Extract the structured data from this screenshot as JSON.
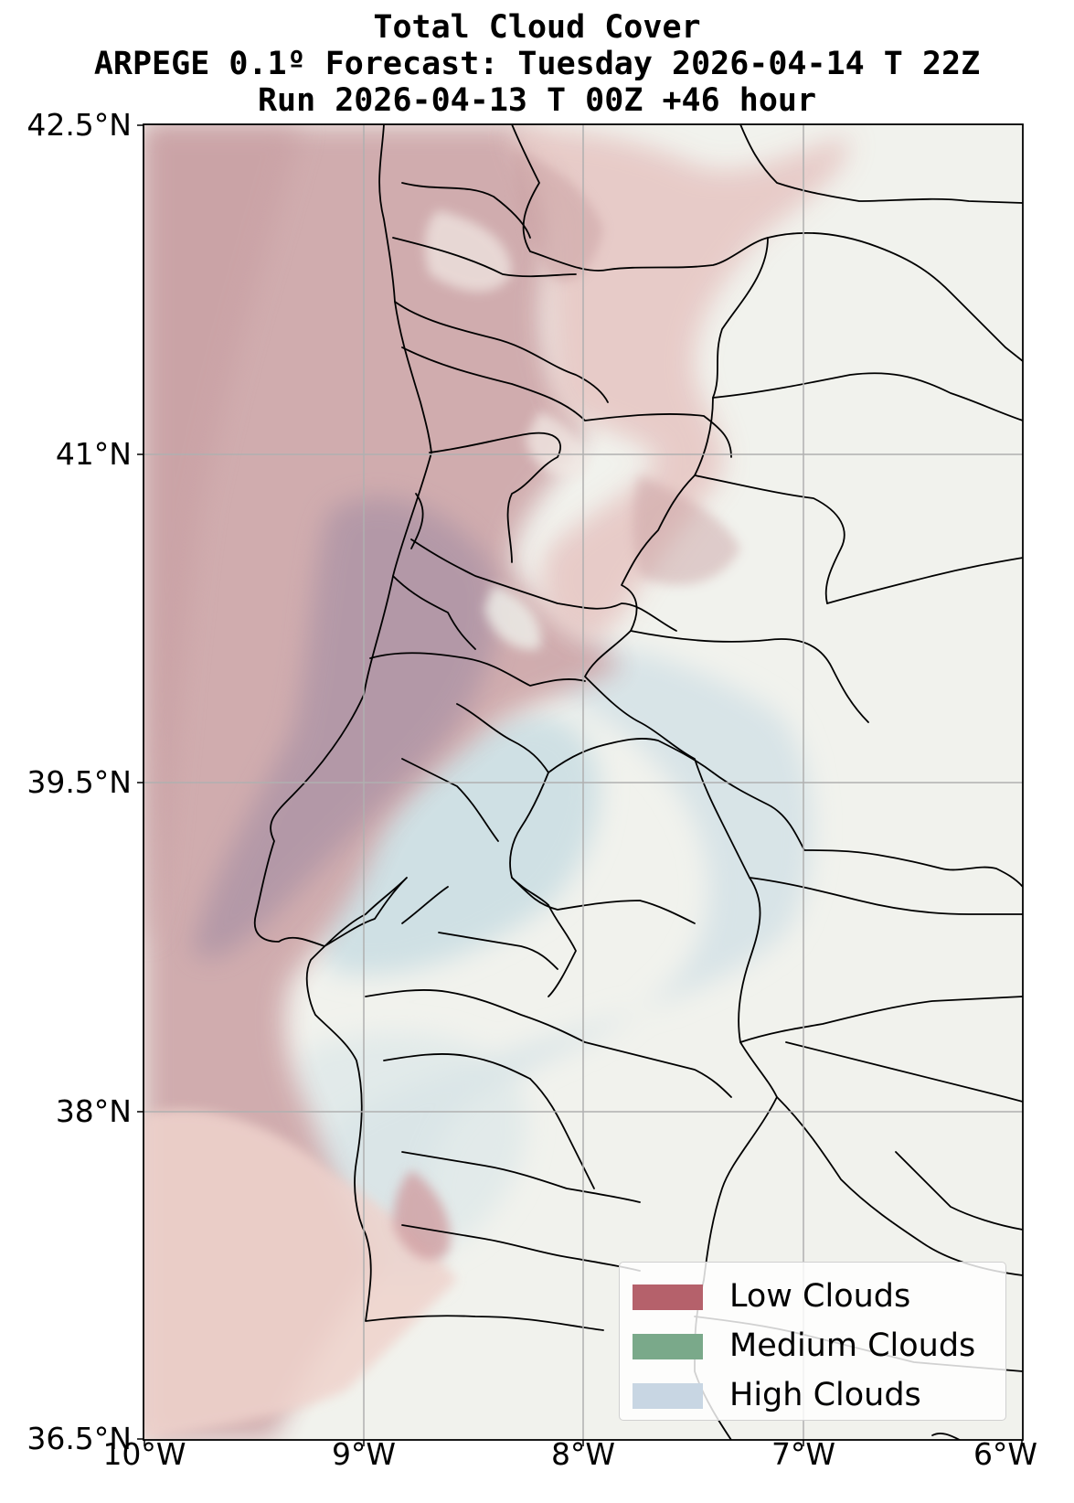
{
  "title": {
    "line1": "Total Cloud Cover",
    "line2": "ARPEGE 0.1º Forecast: Tuesday 2026-04-14 T 22Z",
    "line3": "Run 2026-04-13 T 00Z +46 hour"
  },
  "map": {
    "lat_range": [
      36.5,
      42.5
    ],
    "lon_range": [
      -10,
      -6
    ],
    "grid": true,
    "lat_ticks": [
      "42.5°N",
      "41°N",
      "39.5°N",
      "38°N",
      "36.5°N"
    ],
    "lon_ticks": [
      "10°W",
      "9°W",
      "8°W",
      "7°W",
      "6°W"
    ]
  },
  "legend": {
    "placement": "bottom-right",
    "items": [
      {
        "label": "Low Clouds",
        "color": "#b5616b"
      },
      {
        "label": "Medium Clouds",
        "color": "#7aa98a"
      },
      {
        "label": "High Clouds",
        "color": "#c8d6e3"
      }
    ]
  },
  "colors": {
    "land_background": "#f1f2ed",
    "low_cloud_fill": "#c9a0a3",
    "high_cloud_fill": "#d2e0e3",
    "borders": "#000000",
    "gridlines": "#b0b0b0"
  }
}
